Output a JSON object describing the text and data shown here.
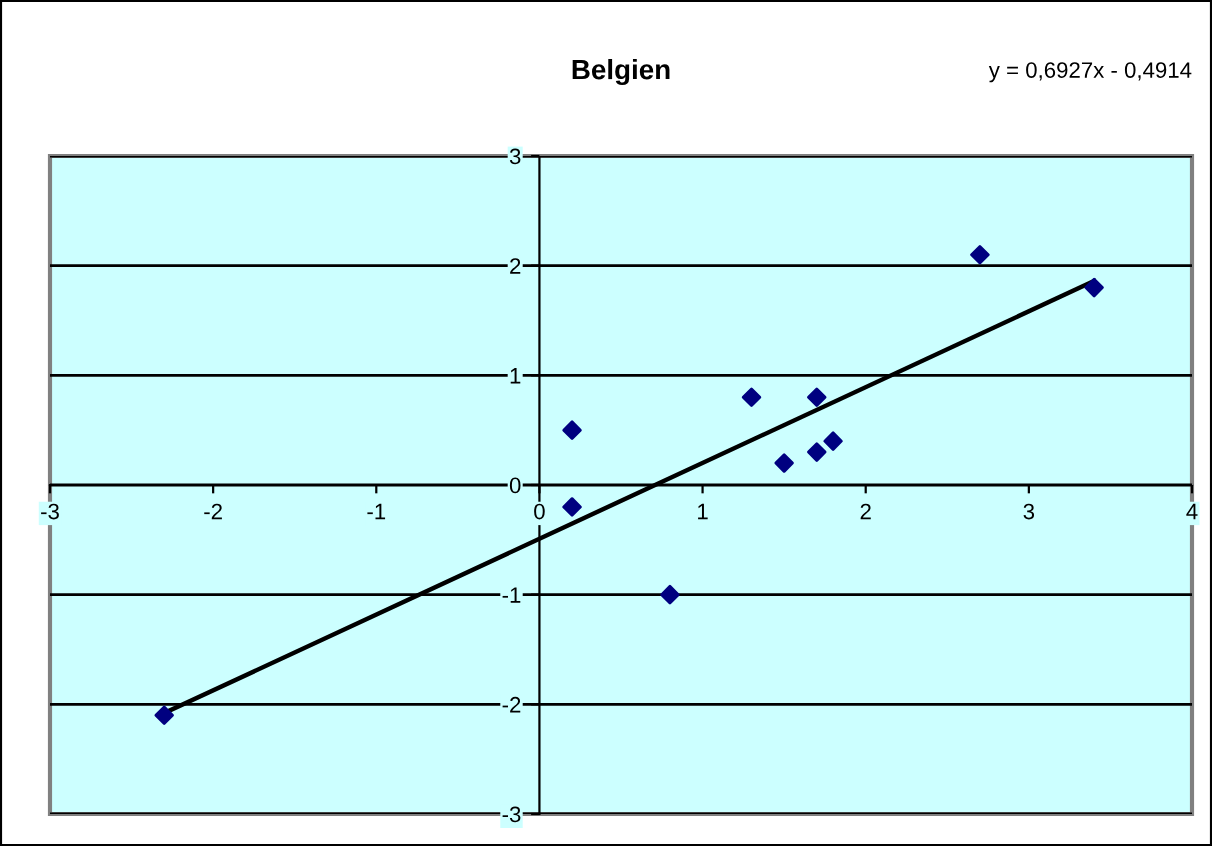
{
  "chart_data": {
    "type": "scatter",
    "title": "Belgien",
    "annotations": [
      "y = 0,6927x - 0,4914"
    ],
    "x": [
      -2.3,
      0.2,
      0.2,
      0.8,
      1.3,
      1.5,
      1.7,
      1.7,
      1.8,
      2.7,
      3.4
    ],
    "series": [
      {
        "color": "#000080",
        "values": [
          -2.1,
          0.5,
          -0.2,
          -1.0,
          0.8,
          0.2,
          0.8,
          0.3,
          0.4,
          2.1,
          1.8
        ],
        "marker": "diamond"
      },
      {
        "type": "line",
        "color": "#000000",
        "x": [
          -2.3,
          3.4
        ],
        "values": [
          -2.08,
          1.86
        ],
        "line_style": "solid"
      }
    ],
    "xlim": [
      -3,
      4
    ],
    "xticks": [
      -3,
      -2,
      -1,
      0,
      1,
      2,
      3,
      4
    ],
    "ylim": [
      -3,
      3
    ],
    "yticks": [
      -3,
      -2,
      -1,
      0,
      1,
      2,
      3
    ],
    "grid": "y",
    "legend": false
  }
}
